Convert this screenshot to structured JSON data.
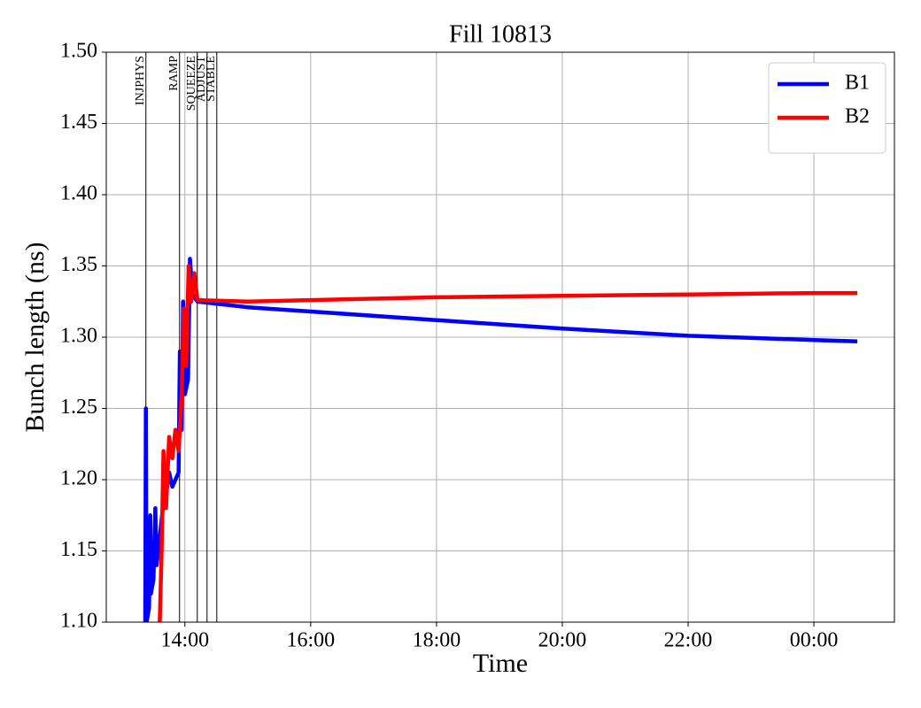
{
  "chart_data": {
    "type": "line",
    "title": "Fill 10813",
    "xlabel": "Time",
    "ylabel": "Bunch length (ns)",
    "xlim": [
      12.75,
      25.28
    ],
    "ylim": [
      1.1,
      1.5
    ],
    "xticks": [
      {
        "value": 14,
        "label": "14:00"
      },
      {
        "value": 16,
        "label": "16:00"
      },
      {
        "value": 18,
        "label": "18:00"
      },
      {
        "value": 20,
        "label": "20:00"
      },
      {
        "value": 22,
        "label": "22:00"
      },
      {
        "value": 24,
        "label": "00:00"
      }
    ],
    "yticks": [
      {
        "value": 1.1,
        "label": "1.10"
      },
      1.15,
      {
        "value": 1.2,
        "label": "1.20"
      },
      1.25,
      {
        "value": 1.3,
        "label": "1.30"
      },
      1.35,
      {
        "value": 1.4,
        "label": "1.40"
      },
      1.45,
      {
        "value": 1.5,
        "label": "1.50"
      }
    ],
    "grid": true,
    "legend": "upper right",
    "annotations": [
      {
        "text": "INJPHYS",
        "x": 13.38
      },
      {
        "text": "RAMP",
        "x": 13.915
      },
      {
        "text": "SQUEEZE",
        "x": 14.197
      },
      {
        "text": "ADJUST",
        "x": 14.352
      },
      {
        "text": "STABLE",
        "x": 14.507
      }
    ],
    "series": [
      {
        "name": "B1",
        "color": "#0000ff",
        "x": [
          13.37,
          13.38,
          13.39,
          13.43,
          13.45,
          13.46,
          13.5,
          13.53,
          13.55,
          13.6,
          13.65,
          13.7,
          13.75,
          13.8,
          13.85,
          13.9,
          13.92,
          13.95,
          13.97,
          14.0,
          14.05,
          14.08,
          14.12,
          14.2,
          15,
          16,
          18,
          20,
          22,
          24,
          24.69
        ],
        "values": [
          1.1,
          1.25,
          1.1,
          1.11,
          1.175,
          1.12,
          1.13,
          1.18,
          1.14,
          1.16,
          1.18,
          1.19,
          1.205,
          1.195,
          1.2,
          1.205,
          1.29,
          1.235,
          1.325,
          1.26,
          1.27,
          1.355,
          1.33,
          1.325,
          1.321,
          1.318,
          1.312,
          1.306,
          1.301,
          1.298,
          1.297
        ]
      },
      {
        "name": "B2",
        "color": "#ff0000",
        "x": [
          13.6,
          13.63,
          13.66,
          13.7,
          13.75,
          13.8,
          13.85,
          13.9,
          13.95,
          13.98,
          14.02,
          14.06,
          14.1,
          14.15,
          14.2,
          15,
          16,
          18,
          20,
          22,
          24,
          24.69
        ],
        "values": [
          1.1,
          1.15,
          1.22,
          1.18,
          1.23,
          1.215,
          1.235,
          1.22,
          1.26,
          1.32,
          1.28,
          1.35,
          1.325,
          1.345,
          1.326,
          1.325,
          1.326,
          1.328,
          1.329,
          1.33,
          1.331,
          1.331
        ]
      }
    ]
  }
}
